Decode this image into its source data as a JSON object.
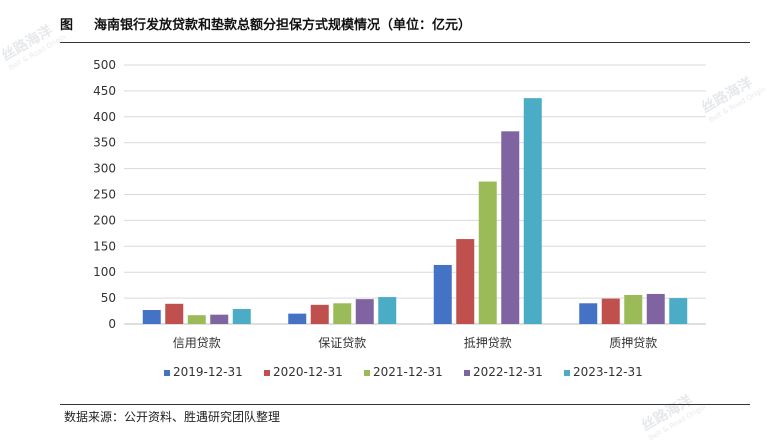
{
  "header": {
    "figure_label": "图",
    "title": "海南银行发放贷款和垫款总额分担保方式规模情况（单位：亿元）"
  },
  "footer": {
    "source": "数据来源：公开资料、胜遇研究团队整理"
  },
  "watermark": {
    "cn": "丝路海洋",
    "en": "Belt & Road Origin"
  },
  "colors": {
    "series": [
      "#4472c4",
      "#c0504d",
      "#9bbb59",
      "#8064a2",
      "#4bacc6"
    ],
    "grid": "#d9d9d9",
    "axis": "#bfbfbf",
    "text": "#333333"
  },
  "chart_data": {
    "type": "bar",
    "categories": [
      "信用贷款",
      "保证贷款",
      "抵押贷款",
      "质押贷款"
    ],
    "series": [
      {
        "name": "2019-12-31",
        "values": [
          27,
          20,
          114,
          40
        ]
      },
      {
        "name": "2020-12-31",
        "values": [
          39,
          37,
          164,
          49
        ]
      },
      {
        "name": "2021-12-31",
        "values": [
          17,
          40,
          275,
          56
        ]
      },
      {
        "name": "2022-12-31",
        "values": [
          18,
          48,
          372,
          58
        ]
      },
      {
        "name": "2023-12-31",
        "values": [
          29,
          52,
          436,
          50
        ]
      }
    ],
    "yticks": [
      0,
      50,
      100,
      150,
      200,
      250,
      300,
      350,
      400,
      450,
      500
    ],
    "ylim": [
      0,
      500
    ],
    "grid": true,
    "legend_position": "bottom"
  }
}
